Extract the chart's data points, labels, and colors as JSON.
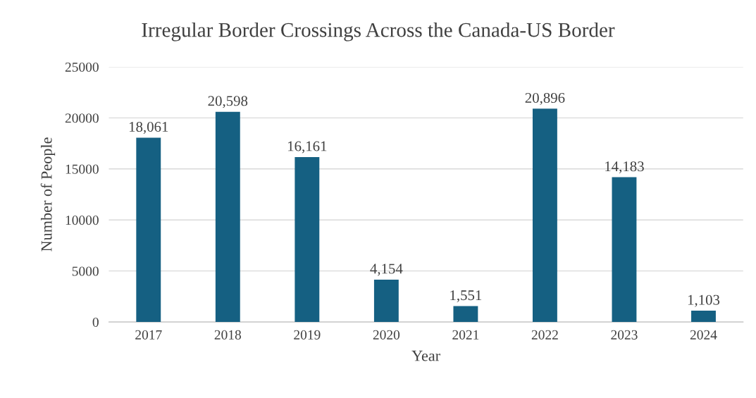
{
  "chart_data": {
    "type": "bar",
    "title": "Irregular Border Crossings Across the Canada-US Border",
    "xlabel": "Year",
    "ylabel": "Number of People",
    "categories": [
      "2017",
      "2018",
      "2019",
      "2020",
      "2021",
      "2022",
      "2023",
      "2024"
    ],
    "values": [
      18061,
      20598,
      16161,
      4154,
      1551,
      20896,
      14183,
      1103
    ],
    "value_labels": [
      "18,061",
      "20,598",
      "16,161",
      "4,154",
      "1,551",
      "20,896",
      "14,183",
      "1,103"
    ],
    "color": "#156082",
    "ylim": [
      0,
      25000
    ],
    "yticks": [
      0,
      5000,
      10000,
      15000,
      20000,
      25000
    ],
    "grid": "y"
  }
}
